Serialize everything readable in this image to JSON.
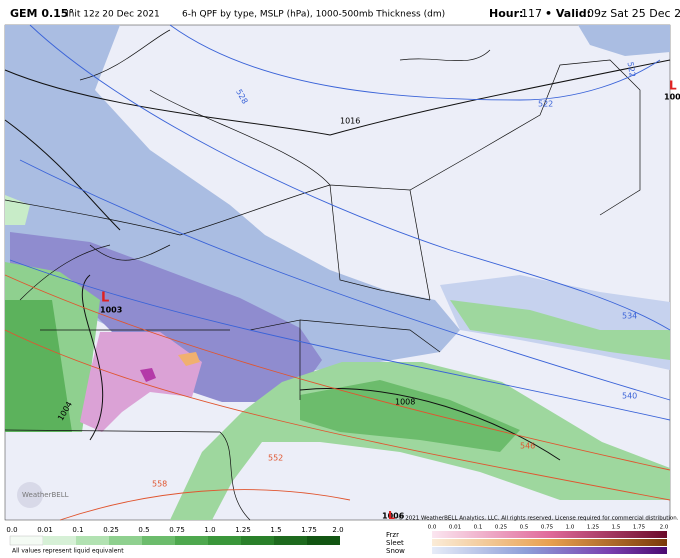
{
  "header": {
    "model": "GEM 0.15°",
    "init": "Init 12z 20 Dec 2021",
    "product": "6-h QPF by type, MSLP (hPa), 1000-500mb Thickness (dm)",
    "hour_label": "Hour:",
    "hour": "117",
    "valid_label": "• Valid:",
    "valid": "09z Sat 25 Dec 2021"
  },
  "map": {
    "lows": [
      {
        "symbol": "L",
        "pressure": "1003"
      },
      {
        "symbol": "L",
        "pressure": "100"
      }
    ],
    "isobars": [
      "1016",
      "1008",
      "1004",
      "1006"
    ],
    "thickness": [
      "528",
      "522",
      "534",
      "540",
      "546",
      "552",
      "558",
      "522"
    ],
    "watermark": "WeatherBELL"
  },
  "legend": {
    "rain_ticks": [
      "0.0",
      "0.01",
      "0.1",
      "0.25",
      "0.5",
      "0.75",
      "1.0",
      "1.25",
      "1.5",
      "1.75",
      "2.0"
    ],
    "note": "All values represent liquid equivalent",
    "type_ticks": [
      "0.0",
      "0.01",
      "0.1",
      "0.25",
      "0.5",
      "0.75",
      "1.0",
      "1.25",
      "1.5",
      "1.75",
      "2.0"
    ],
    "types": [
      "Frzr",
      "Sleet",
      "Snow"
    ],
    "low_symbol": "L",
    "copyright": "© 2021 WeatherBELL Analytics, LLC. All rights reserved. License required for commercial distribution."
  }
}
